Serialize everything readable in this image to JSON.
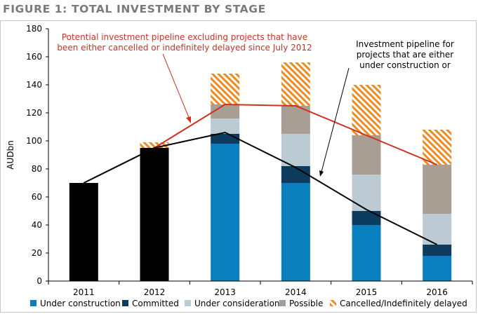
{
  "title": "FIGURE 1: TOTAL INVESTMENT BY STAGE",
  "chart_data": {
    "type": "bar",
    "stacked": true,
    "title": "FIGURE 1: TOTAL INVESTMENT BY STAGE",
    "xlabel": "",
    "ylabel": "AUDbn",
    "ylim": [
      0,
      180
    ],
    "yticks": [
      0,
      20,
      40,
      60,
      80,
      100,
      120,
      140,
      160,
      180
    ],
    "categories": [
      "2011",
      "2012",
      "2013",
      "2014",
      "2015",
      "2016"
    ],
    "colors": {
      "historical": "#000000",
      "under_construction": "#0a7fbe",
      "committed": "#0c3d5e",
      "under_consideration": "#bccad3",
      "possible": "#a89e94",
      "cancelled": "#ef8a1f",
      "red_line": "#d0311e",
      "black_line": "#000000"
    },
    "historical": [
      70,
      95,
      null,
      null,
      null,
      null
    ],
    "series": [
      {
        "name": "Under construction",
        "key": "under_construction",
        "values": [
          0,
          0,
          98,
          70,
          40,
          18
        ]
      },
      {
        "name": "Committed",
        "key": "committed",
        "values": [
          0,
          0,
          7,
          12,
          10,
          8
        ]
      },
      {
        "name": "Under consideration",
        "key": "under_consideration",
        "values": [
          0,
          0,
          11,
          23,
          26,
          22
        ]
      },
      {
        "name": "Possible",
        "key": "possible",
        "values": [
          0,
          0,
          10,
          20,
          28,
          35
        ]
      },
      {
        "name": "Cancelled/Indefinitely delayed",
        "key": "cancelled",
        "values": [
          0,
          4,
          22,
          31,
          36,
          25
        ]
      }
    ],
    "lines": [
      {
        "key": "red_line",
        "values": [
          70,
          95,
          126,
          125,
          104,
          83
        ]
      },
      {
        "key": "black_line",
        "values": [
          70,
          95,
          106,
          81,
          51,
          26
        ]
      }
    ],
    "annotations": [
      {
        "key": "red",
        "text": [
          "Potential investment pipeline excluding projects that have",
          "been either cancelled or indefinitely delayed since July 2012"
        ]
      },
      {
        "key": "black",
        "text": [
          "Investment pipeline for",
          "projects that are either",
          "under construction or"
        ]
      }
    ],
    "grid": false,
    "legend": "bottom"
  }
}
